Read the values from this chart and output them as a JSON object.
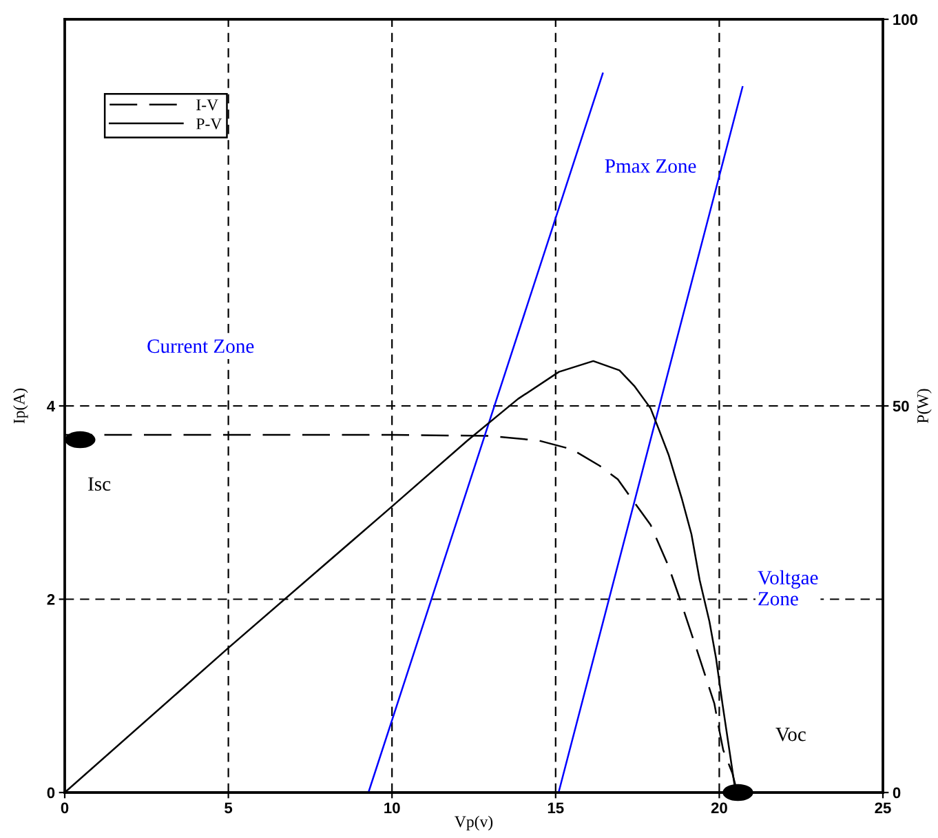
{
  "chart_data": {
    "type": "line",
    "xlabel": "Vp(v)",
    "ylabel": "Ip(A)",
    "y2label": "P(W)",
    "xlim": [
      0,
      25
    ],
    "xticks": [
      0,
      5,
      10,
      15,
      20,
      25
    ],
    "ylim": [
      0,
      8
    ],
    "yticks": [
      0,
      2,
      4
    ],
    "y2lim": [
      0,
      100
    ],
    "y2ticks": [
      0,
      50,
      100
    ],
    "grid": true,
    "legend": "top left",
    "series": [
      {
        "name": "I-V",
        "color": "#000000",
        "line_style": "dashed",
        "x": [
          0,
          5,
          10,
          13,
          14.5,
          15.5,
          16.35,
          16.9,
          17.45,
          17.9,
          18.45,
          18.8,
          19.35,
          19.85,
          19.98,
          20.12,
          20.4,
          20.55
        ],
        "values": [
          3.7,
          3.7,
          3.7,
          3.69,
          3.64,
          3.55,
          3.38,
          3.24,
          2.98,
          2.77,
          2.34,
          2.0,
          1.44,
          0.92,
          0.68,
          0.44,
          0.2,
          0
        ]
      },
      {
        "name": "P-V",
        "color": "#000000",
        "line_style": "solid",
        "axis": "y2",
        "x": [
          0,
          5,
          10,
          12.3,
          13.85,
          15.1,
          16.15,
          16.95,
          17.4,
          17.9,
          18.15,
          18.45,
          18.85,
          19.15,
          19.4,
          19.7,
          19.9,
          20.1,
          20.35,
          20.5
        ],
        "values": [
          0,
          18.7,
          37.0,
          45.5,
          50.9,
          54.4,
          55.8,
          54.6,
          52.6,
          49.7,
          47.0,
          43.7,
          38.1,
          33.4,
          27.5,
          22.1,
          17.4,
          11.4,
          4.3,
          0
        ]
      },
      {
        "color": "#0000ff",
        "x": [
          9.28,
          16.44
        ],
        "values": [
          0,
          7.44
        ]
      },
      {
        "color": "#0000ff",
        "x": [
          15.09,
          20.71
        ],
        "values": [
          0,
          7.3
        ]
      },
      {
        "type": "scatter",
        "color": "#000000",
        "marker": "circle",
        "x": [
          0.47,
          20.57
        ],
        "values": [
          3.65,
          0
        ]
      }
    ],
    "annotations": [
      "Current Zone",
      "Pmax Zone",
      "Voltgae\nZone",
      {
        "text": "Isc",
        "x": 0.47,
        "y": 3.65
      },
      "Voc"
    ]
  }
}
